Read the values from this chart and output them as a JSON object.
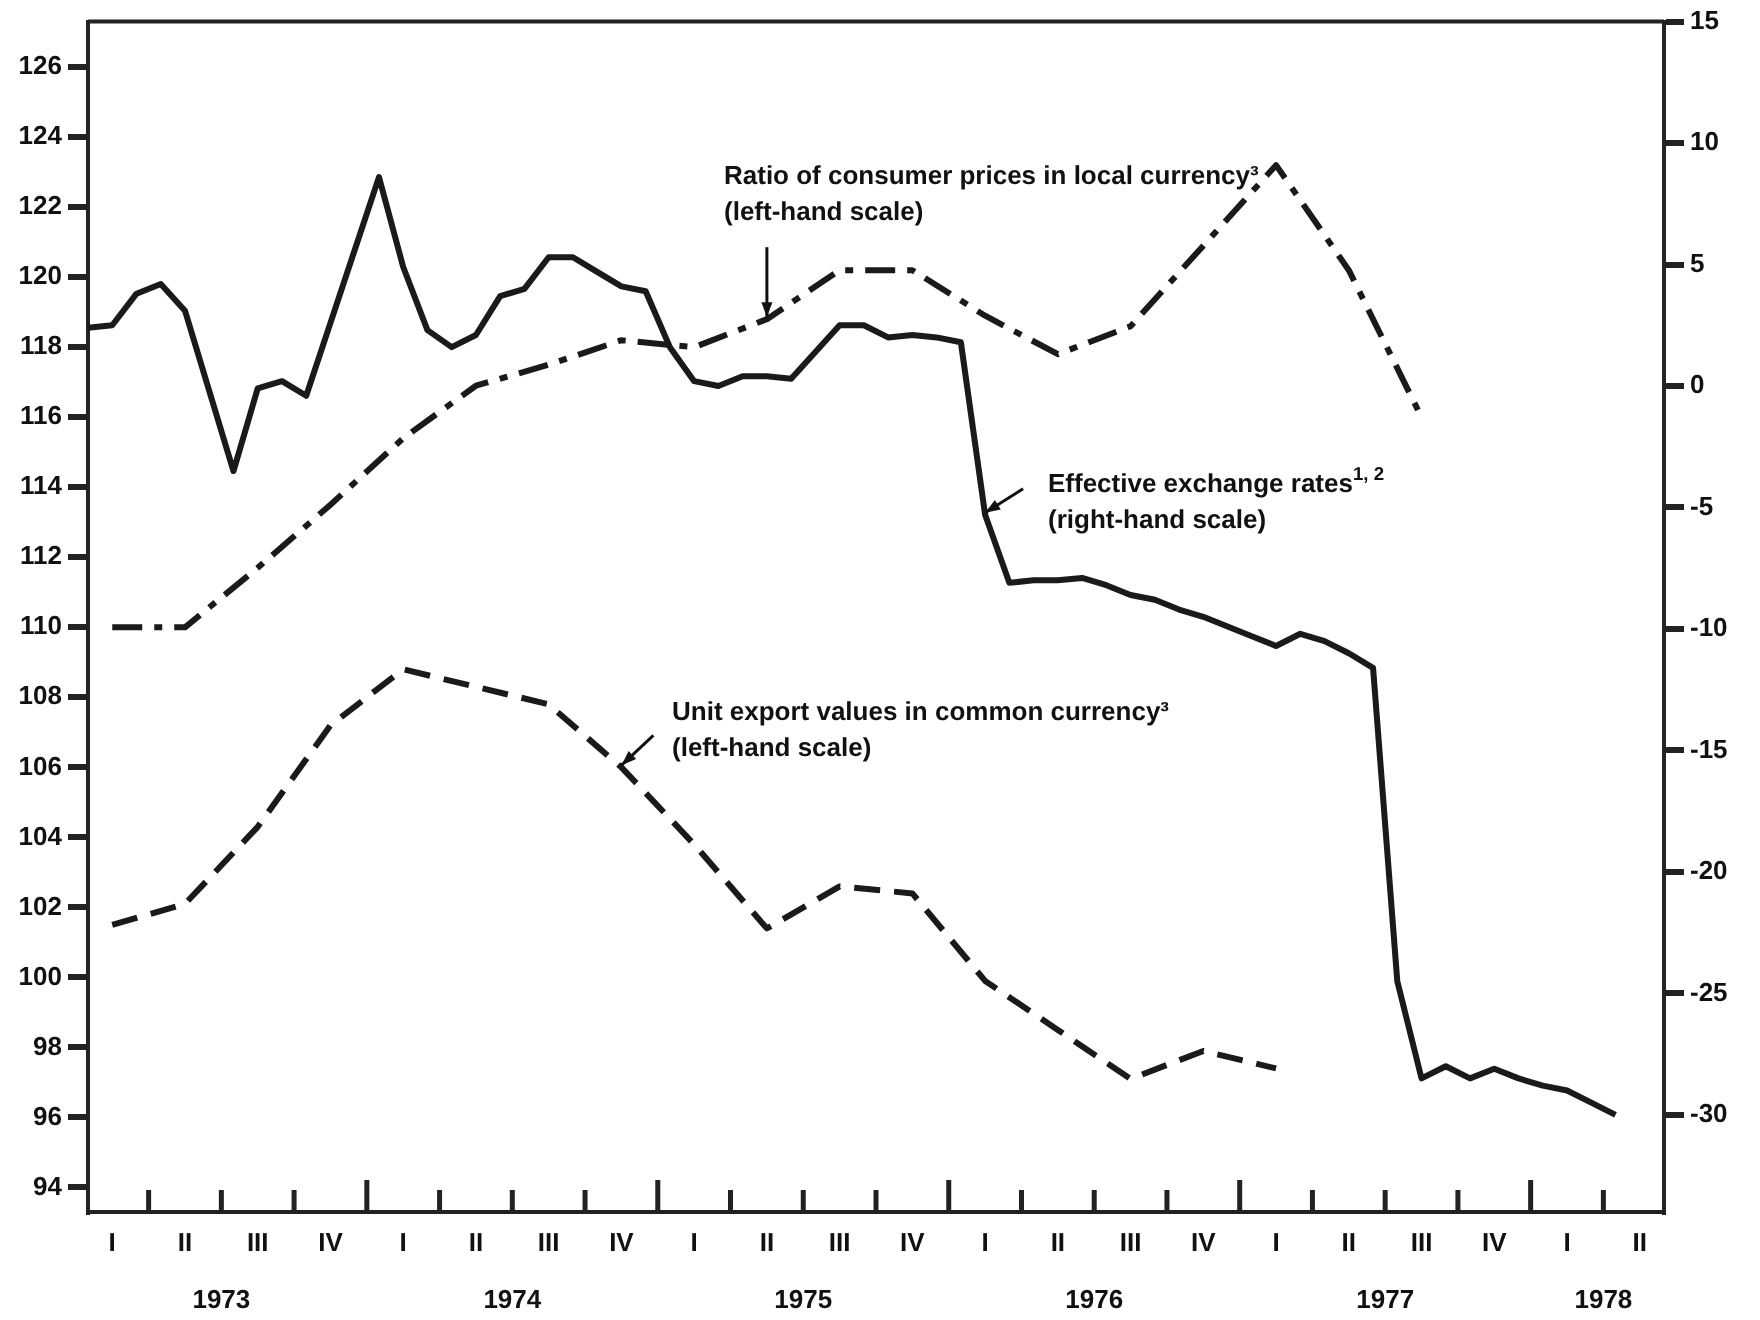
{
  "chart_data": {
    "type": "line",
    "categories": [
      null,
      "I",
      null,
      null,
      "II",
      null,
      null,
      "III",
      null,
      null,
      "IV",
      null,
      null,
      "I",
      null,
      null,
      "II",
      null,
      null,
      "III",
      null,
      null,
      "IV",
      null,
      null,
      "I",
      null,
      null,
      "II",
      null,
      null,
      "III",
      null,
      null,
      "IV",
      null,
      null,
      "I",
      null,
      null,
      "II",
      null,
      null,
      "III",
      null,
      null,
      "IV",
      null,
      null,
      "I",
      null,
      null,
      "II",
      null,
      null,
      "III",
      null,
      null,
      "IV",
      null,
      null,
      "I",
      null,
      null,
      "II",
      null
    ],
    "ylim": [
      93.3,
      127.3
    ],
    "yticks": [
      94,
      96,
      98,
      100,
      102,
      104,
      106,
      108,
      110,
      112,
      114,
      116,
      118,
      120,
      122,
      124,
      126
    ],
    "y2lim": [
      -34,
      15
    ],
    "y2ticks": [
      -30,
      -25,
      -20,
      -15,
      -10,
      -5,
      0,
      5,
      10,
      15
    ],
    "grid": false,
    "legend": false,
    "marker": "none",
    "annotations": [
      "1973",
      "1974",
      "1975",
      "1976",
      "1977",
      "1978"
    ],
    "series": [
      {
        "name": "Ratio of consumer prices in local currency³ (left-hand scale)",
        "color": "#1a1a1a",
        "line_style": "dashdot",
        "values": [
          null,
          110.0,
          null,
          null,
          110.0,
          null,
          null,
          111.7,
          null,
          null,
          113.5,
          null,
          null,
          115.4,
          null,
          null,
          116.9,
          null,
          null,
          117.5,
          null,
          null,
          118.2,
          null,
          null,
          118.0,
          null,
          null,
          118.8,
          null,
          null,
          120.2,
          null,
          null,
          120.2,
          null,
          null,
          118.9,
          null,
          null,
          117.8,
          null,
          null,
          118.6,
          null,
          null,
          120.9,
          null,
          null,
          123.2,
          null,
          null,
          120.2,
          null,
          null,
          116.0,
          null,
          null,
          null,
          null,
          null,
          null,
          null,
          null,
          null,
          null
        ]
      },
      {
        "name": "Effective exchange rates$^{1, 2}$ (right-hand scale)",
        "color": "#1a1a1a",
        "line_style": "solid",
        "axis": "y2",
        "values": [
          2.4,
          2.5,
          3.8,
          4.2,
          3.1,
          -0.2,
          -3.5,
          -0.1,
          0.2,
          -0.4,
          2.6,
          5.6,
          8.6,
          4.9,
          2.3,
          1.6,
          2.1,
          3.7,
          4.0,
          5.3,
          5.3,
          4.7,
          4.1,
          3.9,
          1.6,
          0.2,
          0.0,
          0.4,
          0.4,
          0.3,
          1.4,
          2.5,
          2.5,
          2.0,
          2.1,
          2.0,
          1.8,
          -5.3,
          -8.1,
          -8.0,
          -8.0,
          -7.9,
          -8.2,
          -8.6,
          -8.8,
          -9.2,
          -9.5,
          -9.9,
          -10.3,
          -10.7,
          -10.2,
          -10.5,
          -11.0,
          -11.6,
          -24.5,
          -28.5,
          -28.0,
          -28.5,
          -28.1,
          -28.5,
          -28.8,
          -29.0,
          -29.5,
          -30.0,
          null,
          null
        ]
      },
      {
        "name": "Unit export values in common currency³ (left-hand scale)",
        "color": "#1a1a1a",
        "line_style": "dashed",
        "values": [
          null,
          101.5,
          null,
          null,
          102.1,
          null,
          null,
          104.3,
          null,
          null,
          107.2,
          null,
          null,
          108.8,
          null,
          null,
          108.3,
          null,
          null,
          107.8,
          null,
          null,
          106.0,
          null,
          null,
          103.8,
          null,
          null,
          101.4,
          null,
          null,
          102.6,
          null,
          null,
          102.4,
          null,
          null,
          99.9,
          null,
          null,
          98.5,
          null,
          null,
          97.1,
          null,
          null,
          97.9,
          null,
          null,
          97.4,
          null,
          null,
          null,
          null,
          null,
          null,
          null,
          null,
          null,
          null,
          null,
          null,
          null,
          null,
          null,
          null
        ]
      }
    ]
  }
}
